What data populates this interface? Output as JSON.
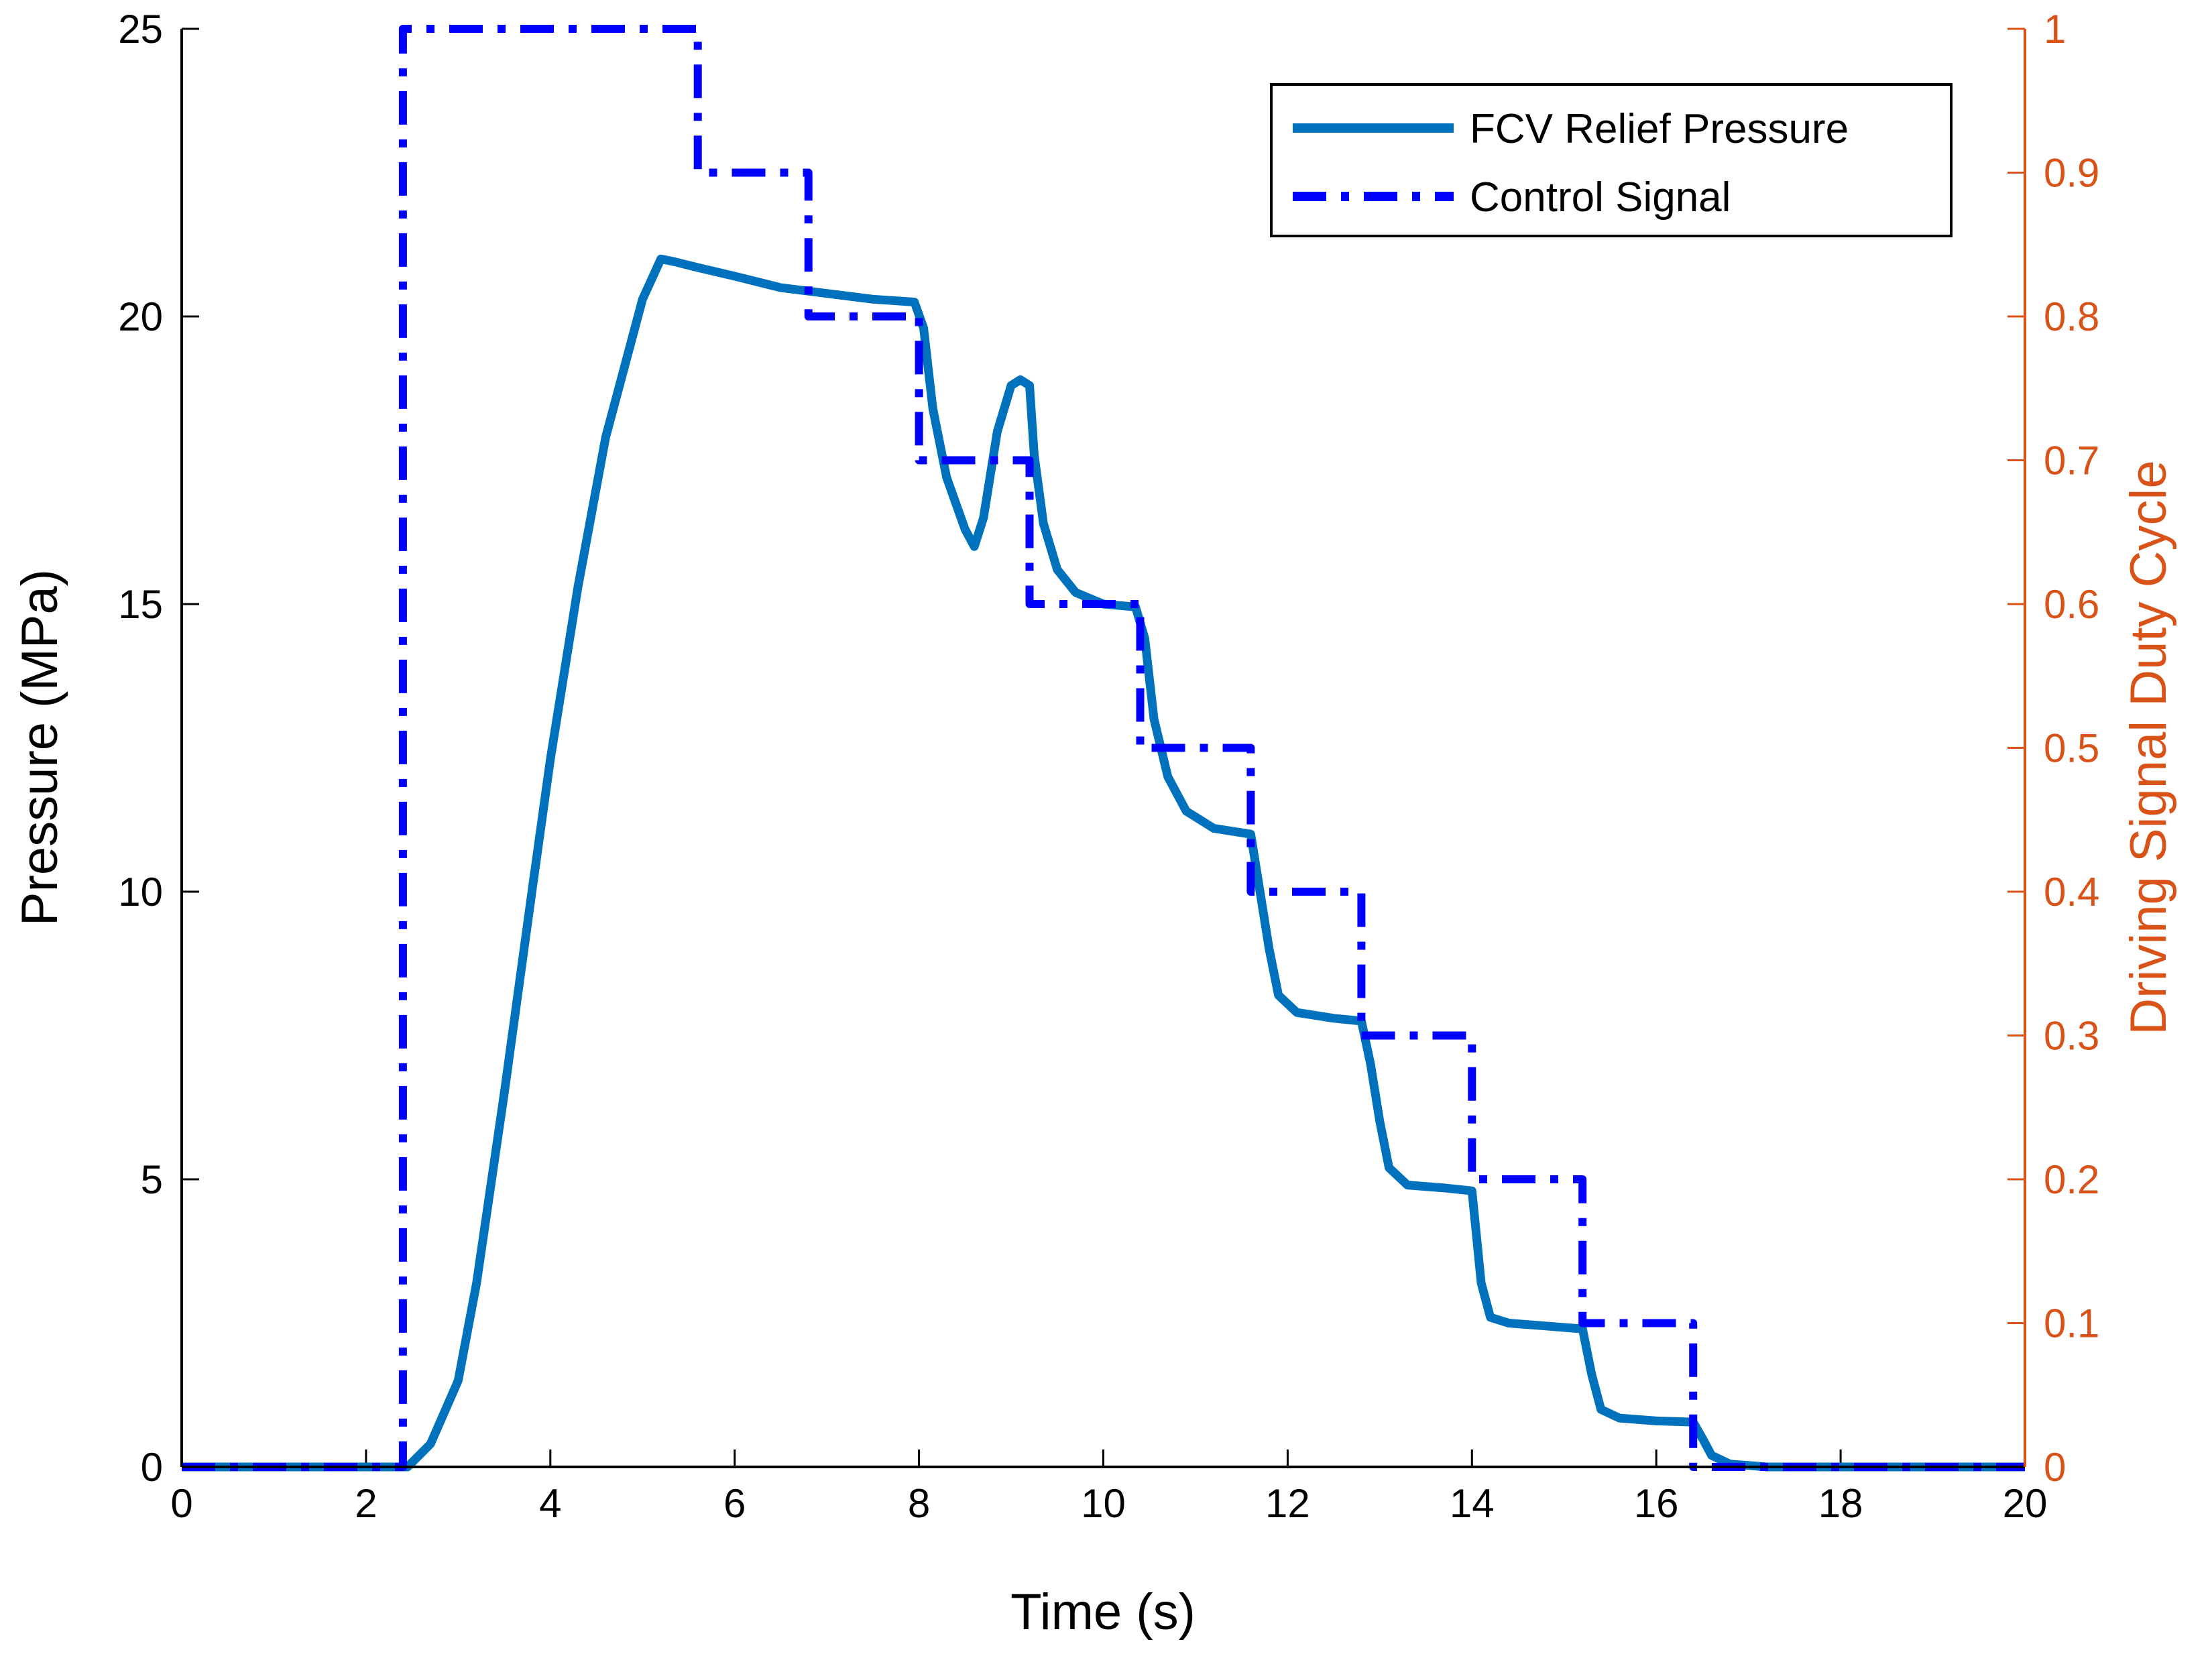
{
  "chart_data": {
    "type": "line",
    "xlabel": "Time (s)",
    "ylabel": "Pressure (MPa)",
    "ylabel_right": "Driving Signal Duty Cycle",
    "xlim": [
      0,
      20
    ],
    "ylim": [
      0,
      25
    ],
    "ylim_right": [
      0,
      1
    ],
    "x_ticks": [
      "0",
      "2",
      "4",
      "6",
      "8",
      "10",
      "12",
      "14",
      "16",
      "18",
      "20"
    ],
    "y_ticks": [
      "0",
      "5",
      "10",
      "15",
      "20",
      "25"
    ],
    "y_ticks_right": [
      "0",
      "0.1",
      "0.2",
      "0.3",
      "0.4",
      "0.5",
      "0.6",
      "0.7",
      "0.8",
      "0.9",
      "1"
    ],
    "legend_position": "top-right",
    "colors": {
      "pressure": "#0072bd",
      "control": "#0000ff",
      "right_axis": "#d95319"
    },
    "series": [
      {
        "name": "FCV Relief Pressure",
        "axis": "left",
        "style": "solid",
        "x": [
          0,
          2.45,
          2.7,
          3.0,
          3.2,
          3.5,
          3.8,
          4.0,
          4.3,
          4.6,
          5.0,
          5.2,
          5.35,
          5.6,
          6.0,
          6.5,
          7.0,
          7.5,
          7.95,
          8.05,
          8.15,
          8.3,
          8.5,
          8.6,
          8.7,
          8.85,
          9.0,
          9.1,
          9.2,
          9.25,
          9.35,
          9.5,
          9.7,
          10.0,
          10.35,
          10.45,
          10.55,
          10.7,
          10.9,
          11.2,
          11.6,
          11.7,
          11.8,
          11.9,
          12.1,
          12.5,
          12.8,
          12.9,
          13.0,
          13.1,
          13.3,
          13.7,
          14.0,
          14.05,
          14.1,
          14.2,
          14.4,
          14.8,
          15.2,
          15.3,
          15.4,
          15.6,
          16.0,
          16.4,
          16.5,
          16.6,
          16.8,
          17.2,
          18,
          19,
          20
        ],
        "values": [
          0,
          0,
          0.4,
          1.5,
          3.2,
          6.5,
          10.0,
          12.3,
          15.3,
          17.9,
          20.3,
          21.0,
          20.95,
          20.85,
          20.7,
          20.5,
          20.4,
          20.3,
          20.25,
          19.8,
          18.4,
          17.2,
          16.3,
          16.0,
          16.5,
          18.0,
          18.8,
          18.9,
          18.8,
          17.6,
          16.4,
          15.6,
          15.2,
          15.0,
          14.95,
          14.4,
          13.0,
          12.0,
          11.4,
          11.1,
          11.0,
          10.0,
          9.0,
          8.2,
          7.9,
          7.8,
          7.75,
          7.0,
          6.0,
          5.2,
          4.9,
          4.85,
          4.8,
          4.0,
          3.2,
          2.6,
          2.5,
          2.45,
          2.4,
          1.6,
          1.0,
          0.85,
          0.8,
          0.78,
          0.5,
          0.2,
          0.05,
          0,
          0,
          0,
          0
        ]
      },
      {
        "name": "Control Signal",
        "axis": "right",
        "style": "dash-dot",
        "x": [
          0,
          2.4,
          2.4,
          5.6,
          5.6,
          6.8,
          6.8,
          8.0,
          8.0,
          9.2,
          9.2,
          10.4,
          10.4,
          11.6,
          11.6,
          12.8,
          12.8,
          14.0,
          14.0,
          15.2,
          15.2,
          16.4,
          16.4,
          20
        ],
        "values": [
          0,
          0,
          1.0,
          1.0,
          0.9,
          0.9,
          0.8,
          0.8,
          0.7,
          0.7,
          0.6,
          0.6,
          0.5,
          0.5,
          0.4,
          0.4,
          0.3,
          0.3,
          0.2,
          0.2,
          0.1,
          0.1,
          0,
          0
        ]
      }
    ]
  }
}
